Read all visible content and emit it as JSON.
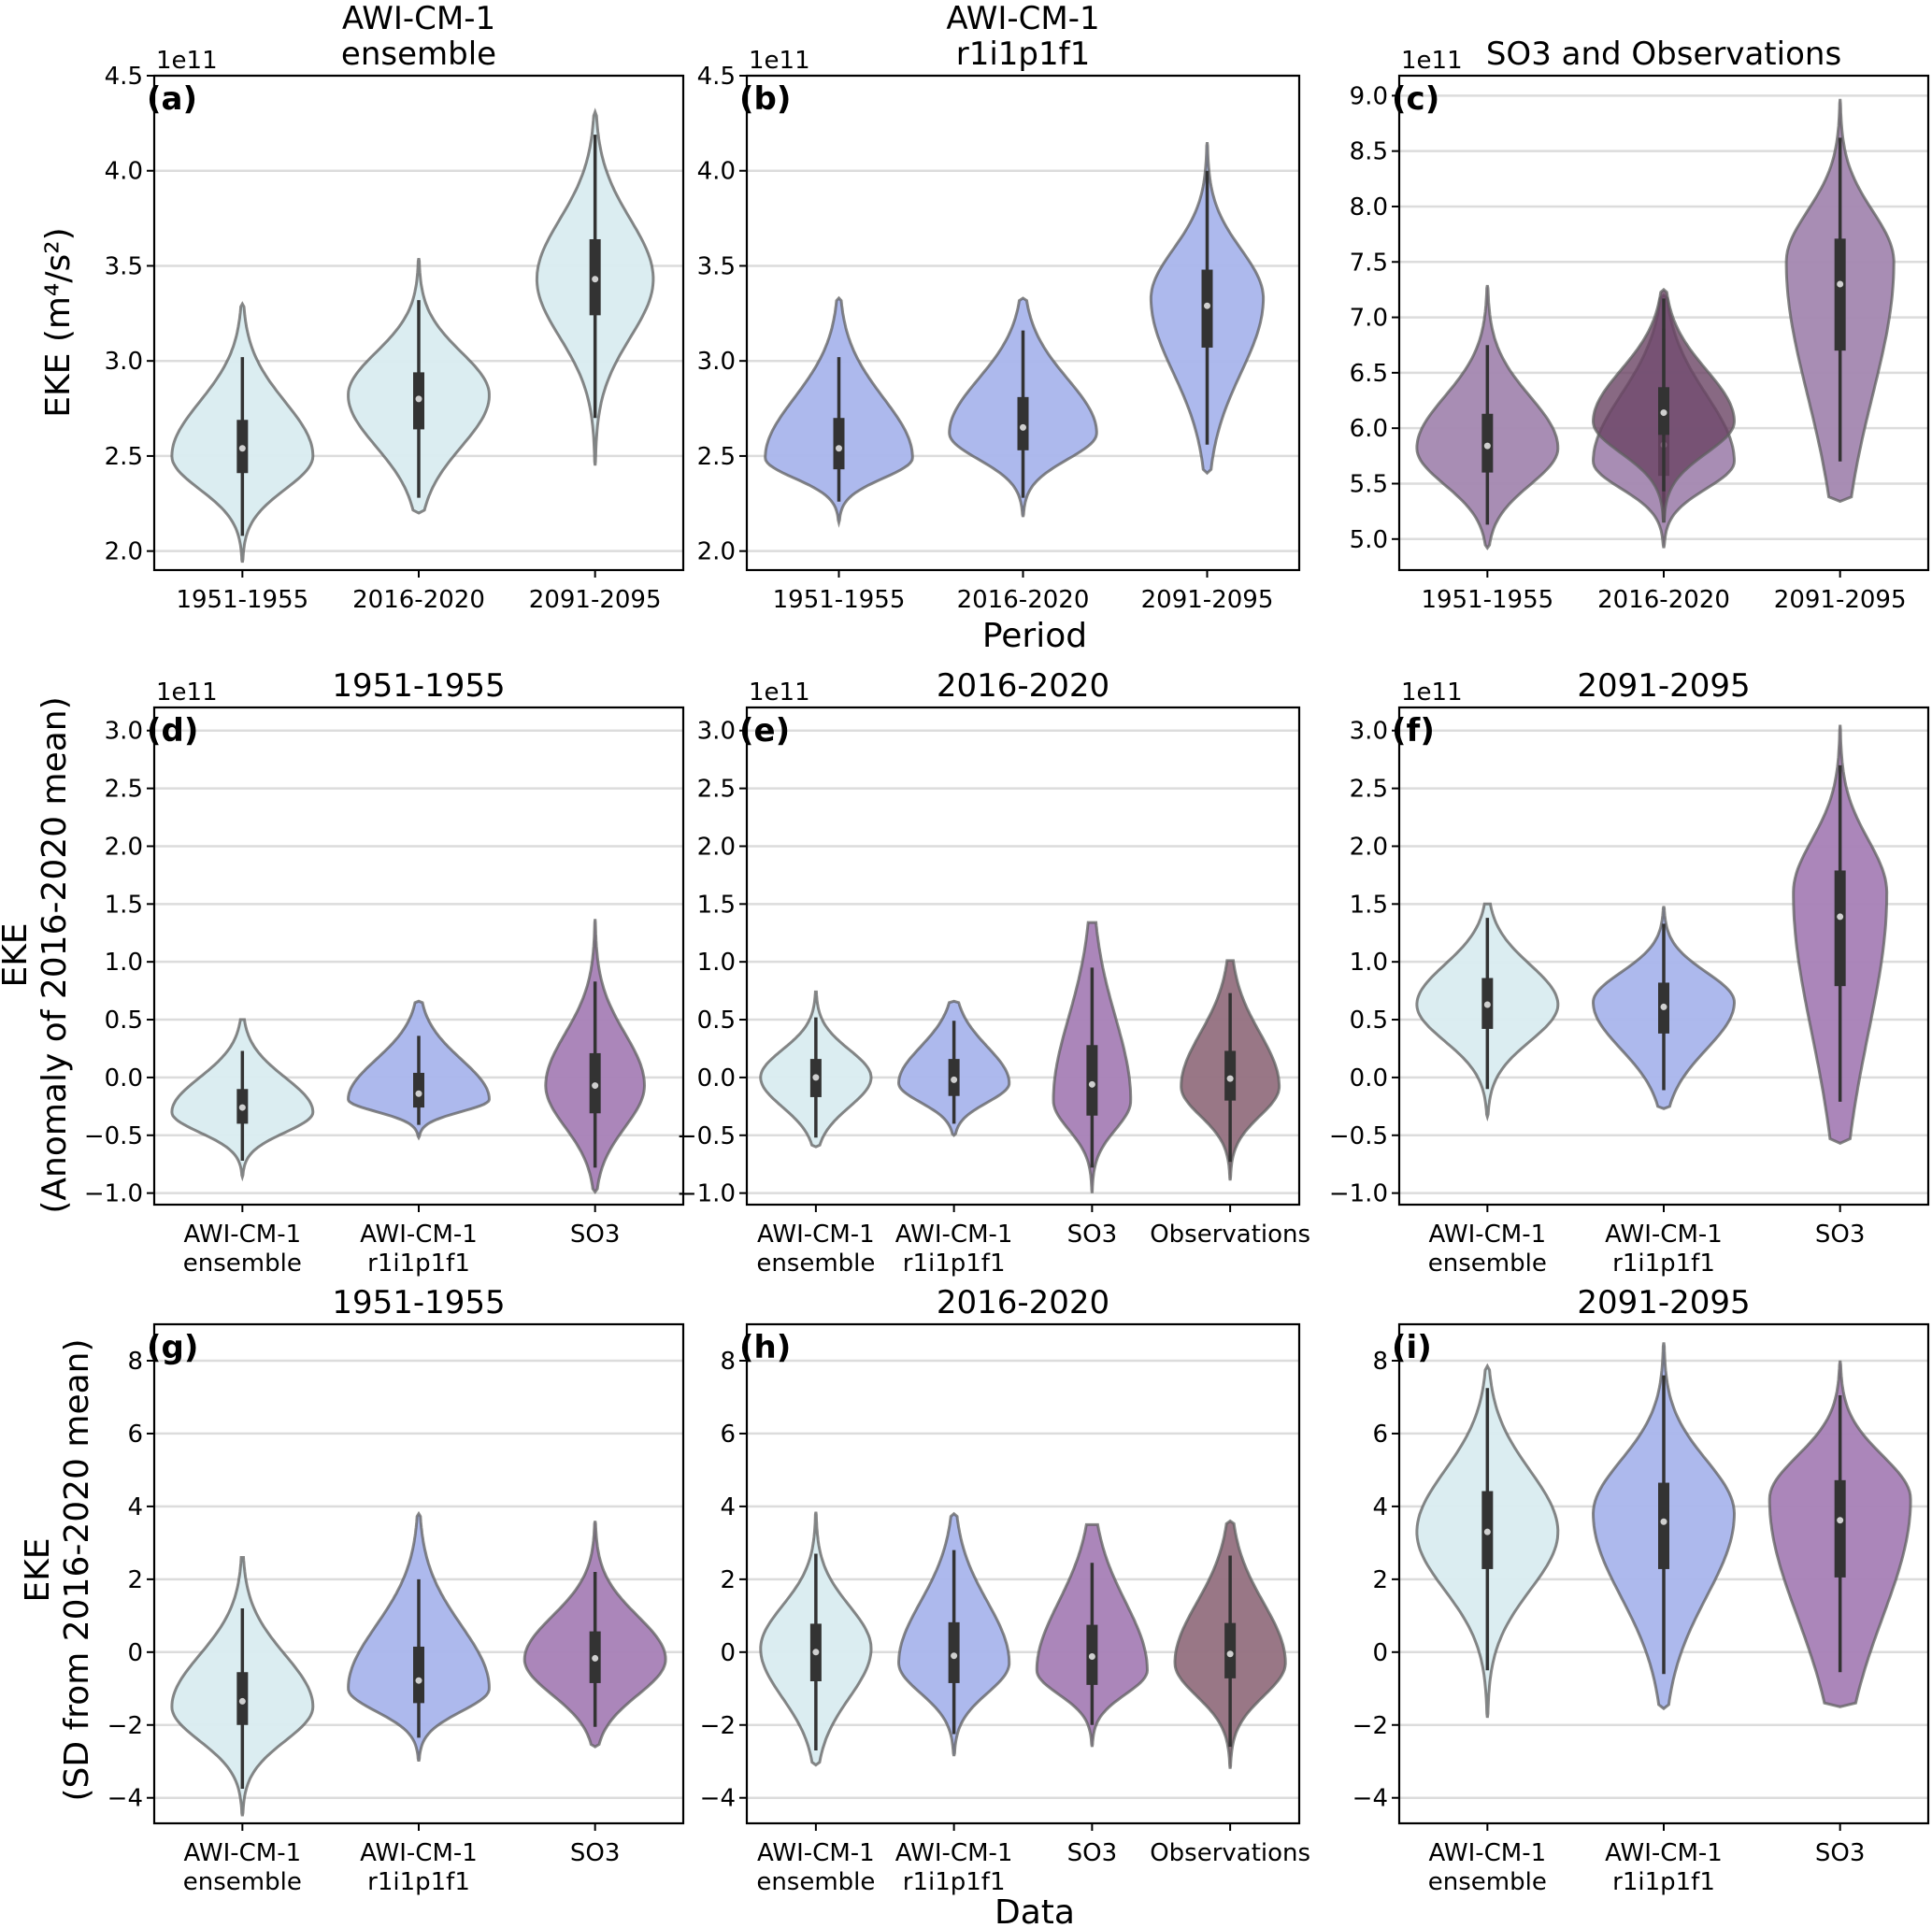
{
  "figure": {
    "row_labels": {
      "row1_ylabel": "EKE (m⁴/s²)",
      "row1_xlabel": "Period",
      "row2_ylabel_line1": "EKE",
      "row2_ylabel_line2": "(Anomaly of 2016-2020 mean)",
      "row3_ylabel_line1": "EKE",
      "row3_ylabel_line2": "(SD from 2016-2020 mean)",
      "row3_xlabel": "Data"
    },
    "colors": {
      "ensemble": "#d9ecf0",
      "r1i1p1f1": "#a9b5ec",
      "SO3": "#a67fb6",
      "SO3_panel_c": "#a387b0",
      "Observations": "#93707f",
      "Observations_panel_c": "#6a4464"
    }
  },
  "chart_data": [
    {
      "id": "a",
      "letter": "(a)",
      "type": "violin",
      "title_lines": [
        "AWI-CM-1",
        "ensemble"
      ],
      "offset_label": "1e11",
      "ylim": [
        1.9,
        4.5
      ],
      "yticks": [
        2.0,
        2.5,
        3.0,
        3.5,
        4.0,
        4.5
      ],
      "ytick_labels": [
        "2.0",
        "2.5",
        "3.0",
        "3.5",
        "4.0",
        "4.5"
      ],
      "categories": [
        "1951-1955",
        "2016-2020",
        "2091-2095"
      ],
      "category_labels": [
        [
          "1951-1955"
        ],
        [
          "2016-2020"
        ],
        [
          "2091-2095"
        ]
      ],
      "violins": [
        {
          "cat": 0,
          "series": "ensemble",
          "min": 1.94,
          "max": 3.3,
          "q1": 2.41,
          "median": 2.54,
          "q3": 2.69,
          "wlo": 2.08,
          "whi": 3.02,
          "mode": 2.5,
          "width": 0.8
        },
        {
          "cat": 1,
          "series": "ensemble",
          "min": 2.2,
          "max": 3.54,
          "q1": 2.64,
          "median": 2.8,
          "q3": 2.94,
          "wlo": 2.28,
          "whi": 3.32,
          "mode": 2.82,
          "width": 0.8
        },
        {
          "cat": 2,
          "series": "ensemble",
          "min": 2.45,
          "max": 4.31,
          "q1": 3.24,
          "median": 3.43,
          "q3": 3.64,
          "wlo": 2.7,
          "whi": 4.19,
          "mode": 3.43,
          "width": 0.5
        }
      ]
    },
    {
      "id": "b",
      "letter": "(b)",
      "type": "violin",
      "title_lines": [
        "AWI-CM-1",
        "r1i1p1f1"
      ],
      "offset_label": "1e11",
      "ylim": [
        1.9,
        4.5
      ],
      "yticks": [
        2.0,
        2.5,
        3.0,
        3.5,
        4.0,
        4.5
      ],
      "ytick_labels": [
        "2.0",
        "2.5",
        "3.0",
        "3.5",
        "4.0",
        "4.5"
      ],
      "categories": [
        "1951-1955",
        "2016-2020",
        "2091-2095"
      ],
      "category_labels": [
        [
          "1951-1955"
        ],
        [
          "2016-2020"
        ],
        [
          "2091-2095"
        ]
      ],
      "violins": [
        {
          "cat": 0,
          "series": "r1i1p1f1",
          "min": 2.15,
          "max": 3.33,
          "q1": 2.43,
          "median": 2.54,
          "q3": 2.7,
          "wlo": 2.26,
          "whi": 3.02,
          "mode": 2.49,
          "width": 0.8
        },
        {
          "cat": 1,
          "series": "r1i1p1f1",
          "min": 2.18,
          "max": 3.33,
          "q1": 2.53,
          "median": 2.65,
          "q3": 2.81,
          "wlo": 2.28,
          "whi": 3.16,
          "mode": 2.62,
          "width": 0.7
        },
        {
          "cat": 2,
          "series": "r1i1p1f1",
          "min": 2.41,
          "max": 4.15,
          "q1": 3.07,
          "median": 3.29,
          "q3": 3.48,
          "wlo": 2.56,
          "whi": 4.0,
          "mode": 3.33,
          "width": 0.45
        }
      ]
    },
    {
      "id": "c",
      "letter": "(c)",
      "type": "violin",
      "title_lines": [
        "SO3 and Observations"
      ],
      "offset_label": "1e11",
      "ylim": [
        4.72,
        9.18
      ],
      "yticks": [
        5.0,
        5.5,
        6.0,
        6.5,
        7.0,
        7.5,
        8.0,
        8.5,
        9.0
      ],
      "ytick_labels": [
        "5.0",
        "5.5",
        "6.0",
        "6.5",
        "7.0",
        "7.5",
        "8.0",
        "8.5",
        "9.0"
      ],
      "categories": [
        "1951-1955",
        "2016-2020",
        "2091-2095"
      ],
      "category_labels": [
        [
          "1951-1955"
        ],
        [
          "2016-2020"
        ],
        [
          "2091-2095"
        ]
      ],
      "violins": [
        {
          "cat": 0,
          "series": "SO3_panel_c",
          "min": 4.92,
          "max": 7.29,
          "q1": 5.6,
          "median": 5.84,
          "q3": 6.13,
          "wlo": 5.13,
          "whi": 6.75,
          "mode": 5.82,
          "width": 0.8
        },
        {
          "cat": 1,
          "series": "SO3_panel_c",
          "min": 4.92,
          "max": 7.2,
          "q1": 5.57,
          "median": 5.85,
          "q3": 6.1,
          "wlo": 5.15,
          "whi": 6.9,
          "mode": 5.7,
          "width": 0.7
        },
        {
          "cat": 1,
          "series": "Observations_panel_c",
          "min": 5.15,
          "max": 7.25,
          "q1": 5.94,
          "median": 6.14,
          "q3": 6.37,
          "wlo": 5.43,
          "whi": 7.17,
          "mode": 6.06,
          "width": 0.8,
          "overlay": true
        },
        {
          "cat": 2,
          "series": "SO3_panel_c",
          "min": 5.34,
          "max": 8.97,
          "q1": 6.7,
          "median": 7.3,
          "q3": 7.71,
          "wlo": 5.7,
          "whi": 8.62,
          "mode": 7.5,
          "width": 0.45
        }
      ]
    },
    {
      "id": "d",
      "letter": "(d)",
      "type": "violin",
      "title_lines": [
        "1951-1955"
      ],
      "offset_label": "1e11",
      "ylim": [
        -1.1,
        3.2
      ],
      "yticks": [
        -1.0,
        -0.5,
        0.0,
        0.5,
        1.0,
        1.5,
        2.0,
        2.5,
        3.0
      ],
      "ytick_labels": [
        "−1.0",
        "−0.5",
        "0.0",
        "0.5",
        "1.0",
        "1.5",
        "2.0",
        "2.5",
        "3.0"
      ],
      "categories": [
        "AWI-CM-1 ensemble",
        "AWI-CM-1 r1i1p1f1",
        "SO3"
      ],
      "category_labels": [
        [
          "AWI-CM-1",
          "ensemble"
        ],
        [
          "AWI-CM-1",
          "r1i1p1f1"
        ],
        [
          "SO3"
        ]
      ],
      "violins": [
        {
          "cat": 0,
          "series": "ensemble",
          "min": -0.86,
          "max": 0.5,
          "q1": -0.4,
          "median": -0.26,
          "q3": -0.1,
          "wlo": -0.72,
          "whi": 0.23,
          "mode": -0.3,
          "width": 0.8
        },
        {
          "cat": 1,
          "series": "r1i1p1f1",
          "min": -0.52,
          "max": 0.66,
          "q1": -0.26,
          "median": -0.14,
          "q3": 0.04,
          "wlo": -0.41,
          "whi": 0.36,
          "mode": -0.19,
          "width": 0.8
        },
        {
          "cat": 2,
          "series": "SO3",
          "min": -0.99,
          "max": 1.37,
          "q1": -0.31,
          "median": -0.07,
          "q3": 0.21,
          "wlo": -0.78,
          "whi": 0.83,
          "mode": -0.07,
          "width": 0.4
        }
      ]
    },
    {
      "id": "e",
      "letter": "(e)",
      "type": "violin",
      "title_lines": [
        "2016-2020"
      ],
      "offset_label": "1e11",
      "ylim": [
        -1.1,
        3.2
      ],
      "yticks": [
        -1.0,
        -0.5,
        0.0,
        0.5,
        1.0,
        1.5,
        2.0,
        2.5,
        3.0
      ],
      "ytick_labels": [
        "−1.0",
        "−0.5",
        "0.0",
        "0.5",
        "1.0",
        "1.5",
        "2.0",
        "2.5",
        "3.0"
      ],
      "categories": [
        "AWI-CM-1 ensemble",
        "AWI-CM-1 r1i1p1f1",
        "SO3",
        "Observations"
      ],
      "category_labels": [
        [
          "AWI-CM-1",
          "ensemble"
        ],
        [
          "AWI-CM-1",
          "r1i1p1f1"
        ],
        [
          "SO3"
        ],
        [
          "Observations"
        ]
      ],
      "violins": [
        {
          "cat": 0,
          "series": "ensemble",
          "min": -0.6,
          "max": 0.74,
          "q1": -0.17,
          "median": 0.0,
          "q3": 0.16,
          "wlo": -0.52,
          "whi": 0.52,
          "mode": 0.0,
          "width": 0.8
        },
        {
          "cat": 1,
          "series": "r1i1p1f1",
          "min": -0.5,
          "max": 0.66,
          "q1": -0.16,
          "median": -0.02,
          "q3": 0.16,
          "wlo": -0.4,
          "whi": 0.49,
          "mode": -0.05,
          "width": 0.8
        },
        {
          "cat": 2,
          "series": "SO3",
          "min": -1.0,
          "max": 1.34,
          "q1": -0.33,
          "median": -0.06,
          "q3": 0.28,
          "wlo": -0.78,
          "whi": 0.95,
          "mode": -0.2,
          "width": 0.4
        },
        {
          "cat": 3,
          "series": "Observations",
          "min": -0.89,
          "max": 1.01,
          "q1": -0.2,
          "median": -0.01,
          "q3": 0.23,
          "wlo": -0.73,
          "whi": 0.73,
          "mode": -0.08,
          "width": 0.55
        }
      ]
    },
    {
      "id": "f",
      "letter": "(f)",
      "type": "violin",
      "title_lines": [
        "2091-2095"
      ],
      "offset_label": "1e11",
      "ylim": [
        -1.1,
        3.2
      ],
      "yticks": [
        -1.0,
        -0.5,
        0.0,
        0.5,
        1.0,
        1.5,
        2.0,
        2.5,
        3.0
      ],
      "ytick_labels": [
        "−1.0",
        "−0.5",
        "0.0",
        "0.5",
        "1.0",
        "1.5",
        "2.0",
        "2.5",
        "3.0"
      ],
      "categories": [
        "AWI-CM-1 ensemble",
        "AWI-CM-1 r1i1p1f1",
        "SO3"
      ],
      "category_labels": [
        [
          "AWI-CM-1",
          "ensemble"
        ],
        [
          "AWI-CM-1",
          "r1i1p1f1"
        ],
        [
          "SO3"
        ]
      ],
      "violins": [
        {
          "cat": 0,
          "series": "ensemble",
          "min": -0.34,
          "max": 1.5,
          "q1": 0.42,
          "median": 0.63,
          "q3": 0.86,
          "wlo": -0.1,
          "whi": 1.38,
          "mode": 0.63,
          "width": 0.8
        },
        {
          "cat": 1,
          "series": "r1i1p1f1",
          "min": -0.27,
          "max": 1.48,
          "q1": 0.38,
          "median": 0.61,
          "q3": 0.82,
          "wlo": -0.11,
          "whi": 1.33,
          "mode": 0.65,
          "width": 0.75
        },
        {
          "cat": 2,
          "series": "SO3",
          "min": -0.57,
          "max": 3.05,
          "q1": 0.79,
          "median": 1.39,
          "q3": 1.79,
          "wlo": -0.21,
          "whi": 2.7,
          "mode": 1.6,
          "width": 0.37
        }
      ]
    },
    {
      "id": "g",
      "letter": "(g)",
      "type": "violin",
      "title_lines": [
        "1951-1955"
      ],
      "offset_label": "",
      "ylim": [
        -4.7,
        9.0
      ],
      "yticks": [
        -4,
        -2,
        0,
        2,
        4,
        6,
        8
      ],
      "ytick_labels": [
        "−4",
        "−2",
        "0",
        "2",
        "4",
        "6",
        "8"
      ],
      "categories": [
        "AWI-CM-1 ensemble",
        "AWI-CM-1 r1i1p1f1",
        "SO3"
      ],
      "category_labels": [
        [
          "AWI-CM-1",
          "ensemble"
        ],
        [
          "AWI-CM-1",
          "r1i1p1f1"
        ],
        [
          "SO3"
        ]
      ],
      "violins": [
        {
          "cat": 0,
          "series": "ensemble",
          "min": -4.5,
          "max": 2.6,
          "q1": -2.0,
          "median": -1.35,
          "q3": -0.55,
          "wlo": -3.75,
          "whi": 1.2,
          "mode": -1.5,
          "width": 0.8
        },
        {
          "cat": 1,
          "series": "r1i1p1f1",
          "min": -3.0,
          "max": 3.8,
          "q1": -1.4,
          "median": -0.78,
          "q3": 0.15,
          "wlo": -2.35,
          "whi": 2.0,
          "mode": -1.0,
          "width": 0.75
        },
        {
          "cat": 2,
          "series": "SO3",
          "min": -2.6,
          "max": 3.6,
          "q1": -0.85,
          "median": -0.17,
          "q3": 0.57,
          "wlo": -2.05,
          "whi": 2.2,
          "mode": -0.2,
          "width": 0.8
        }
      ]
    },
    {
      "id": "h",
      "letter": "(h)",
      "type": "violin",
      "title_lines": [
        "2016-2020"
      ],
      "offset_label": "",
      "ylim": [
        -4.7,
        9.0
      ],
      "yticks": [
        -4,
        -2,
        0,
        2,
        4,
        6,
        8
      ],
      "ytick_labels": [
        "−4",
        "−2",
        "0",
        "2",
        "4",
        "6",
        "8"
      ],
      "categories": [
        "AWI-CM-1 ensemble",
        "AWI-CM-1 r1i1p1f1",
        "SO3",
        "Observations"
      ],
      "category_labels": [
        [
          "AWI-CM-1",
          "ensemble"
        ],
        [
          "AWI-CM-1",
          "r1i1p1f1"
        ],
        [
          "SO3"
        ],
        [
          "Observations"
        ]
      ],
      "violins": [
        {
          "cat": 0,
          "series": "ensemble",
          "min": -3.1,
          "max": 3.85,
          "q1": -0.8,
          "median": 0.0,
          "q3": 0.78,
          "wlo": -2.7,
          "whi": 2.7,
          "mode": 0.1,
          "width": 0.8
        },
        {
          "cat": 1,
          "series": "r1i1p1f1",
          "min": -2.85,
          "max": 3.8,
          "q1": -0.85,
          "median": -0.1,
          "q3": 0.82,
          "wlo": -2.25,
          "whi": 2.8,
          "mode": -0.3,
          "width": 0.75
        },
        {
          "cat": 2,
          "series": "SO3",
          "min": -2.6,
          "max": 3.5,
          "q1": -0.9,
          "median": -0.12,
          "q3": 0.75,
          "wlo": -2.0,
          "whi": 2.45,
          "mode": -0.5,
          "width": 0.8
        },
        {
          "cat": 3,
          "series": "Observations",
          "min": -3.2,
          "max": 3.6,
          "q1": -0.72,
          "median": -0.05,
          "q3": 0.8,
          "wlo": -2.6,
          "whi": 2.65,
          "mode": -0.3,
          "width": 0.8
        }
      ]
    },
    {
      "id": "i",
      "letter": "(i)",
      "type": "violin",
      "title_lines": [
        "2091-2095"
      ],
      "offset_label": "",
      "ylim": [
        -4.7,
        9.0
      ],
      "yticks": [
        -4,
        -2,
        0,
        2,
        4,
        6,
        8
      ],
      "ytick_labels": [
        "−4",
        "−2",
        "0",
        "2",
        "4",
        "6",
        "8"
      ],
      "categories": [
        "AWI-CM-1 ensemble",
        "AWI-CM-1 r1i1p1f1",
        "SO3"
      ],
      "category_labels": [
        [
          "AWI-CM-1",
          "ensemble"
        ],
        [
          "AWI-CM-1",
          "r1i1p1f1"
        ],
        [
          "SO3"
        ]
      ],
      "violins": [
        {
          "cat": 0,
          "series": "ensemble",
          "min": -1.8,
          "max": 7.85,
          "q1": 2.28,
          "median": 3.3,
          "q3": 4.42,
          "wlo": -0.5,
          "whi": 7.25,
          "mode": 3.3,
          "width": 0.8
        },
        {
          "cat": 1,
          "series": "r1i1p1f1",
          "min": -1.55,
          "max": 8.5,
          "q1": 2.28,
          "median": 3.58,
          "q3": 4.65,
          "wlo": -0.6,
          "whi": 7.6,
          "mode": 3.8,
          "width": 0.7
        },
        {
          "cat": 2,
          "series": "SO3",
          "min": -1.5,
          "max": 8.0,
          "q1": 2.05,
          "median": 3.62,
          "q3": 4.72,
          "wlo": -0.55,
          "whi": 7.05,
          "mode": 4.2,
          "width": 0.75
        }
      ]
    }
  ]
}
